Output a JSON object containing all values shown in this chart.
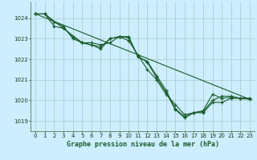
{
  "title": "Graphe pression niveau de la mer (hPa)",
  "background_color": "#cceeff",
  "grid_color": "#b0cccc",
  "line_color": "#1a5c2a",
  "xlim": [
    -0.5,
    23.5
  ],
  "ylim": [
    1018.5,
    1024.8
  ],
  "yticks": [
    1019,
    1020,
    1021,
    1022,
    1023,
    1024
  ],
  "xticks": [
    0,
    1,
    2,
    3,
    4,
    5,
    6,
    7,
    8,
    9,
    10,
    11,
    12,
    13,
    14,
    15,
    16,
    17,
    18,
    19,
    20,
    21,
    22,
    23
  ],
  "series": [
    {
      "x": [
        0,
        1,
        2,
        3,
        4,
        5,
        6,
        7,
        8,
        9,
        10,
        11,
        12,
        13,
        14,
        15,
        16,
        17,
        18,
        19,
        20,
        21,
        22,
        23
      ],
      "y": [
        1024.2,
        1024.2,
        1023.8,
        1023.6,
        1023.0,
        1022.8,
        1022.7,
        1022.6,
        1023.0,
        1023.1,
        1022.9,
        1022.2,
        1021.5,
        1021.0,
        1020.3,
        1019.8,
        1019.3,
        1019.4,
        1019.4,
        1019.9,
        1019.9,
        1020.1,
        1020.1,
        1020.1
      ],
      "has_markers": true
    },
    {
      "x": [
        0,
        1,
        3,
        4,
        5,
        6,
        7,
        8,
        9,
        10,
        11,
        12,
        13,
        14,
        15,
        16,
        17,
        18,
        19,
        20,
        21,
        22,
        23
      ],
      "y": [
        1024.2,
        1024.2,
        1023.5,
        1023.1,
        1022.8,
        1022.7,
        1022.5,
        1023.0,
        1023.1,
        1023.1,
        1022.1,
        1021.9,
        1021.2,
        1020.5,
        1019.6,
        1019.2,
        1019.4,
        1019.5,
        1020.3,
        1020.1,
        1020.15,
        1020.1,
        1020.1
      ],
      "has_markers": true
    },
    {
      "x": [
        0,
        1,
        2,
        3,
        5,
        6,
        7,
        8,
        9,
        10,
        11,
        12,
        13,
        14,
        15,
        16,
        17,
        18,
        19,
        20,
        21,
        22,
        23
      ],
      "y": [
        1024.2,
        1024.2,
        1023.6,
        1023.5,
        1022.8,
        1022.8,
        1022.7,
        1022.8,
        1023.1,
        1023.05,
        1022.15,
        1021.85,
        1021.1,
        1020.4,
        1019.55,
        1019.15,
        1019.4,
        1019.45,
        1020.0,
        1020.2,
        1020.2,
        1020.1,
        1020.05
      ],
      "has_markers": true
    },
    {
      "x": [
        0,
        23
      ],
      "y": [
        1024.2,
        1020.05
      ],
      "has_markers": false
    }
  ],
  "title_fontsize": 6.0,
  "tick_fontsize": 5.0
}
